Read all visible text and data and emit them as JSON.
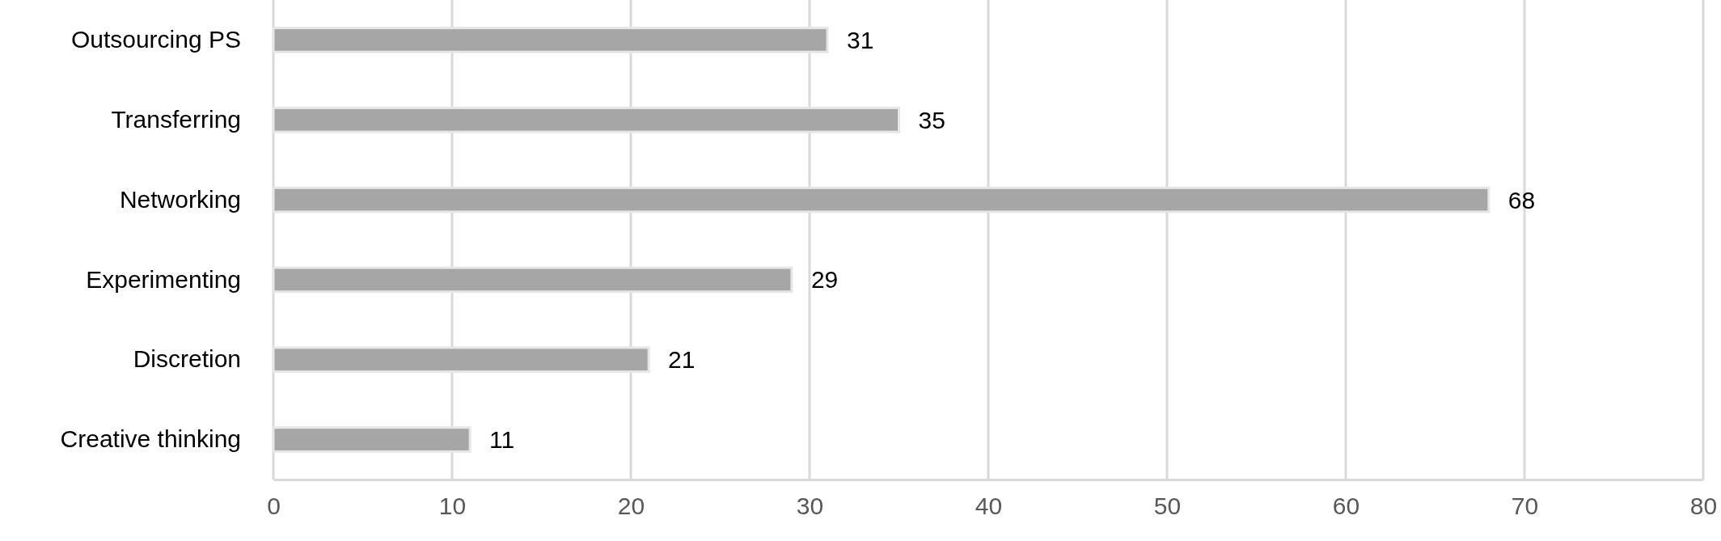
{
  "chart_data": {
    "type": "bar",
    "orientation": "horizontal",
    "categories": [
      "Outsourcing PS",
      "Transferring",
      "Networking",
      "Experimenting",
      "Discretion",
      "Creative thinking"
    ],
    "values": [
      31,
      35,
      68,
      29,
      21,
      11
    ],
    "color": "#a6a6a6",
    "xlim": [
      0,
      80
    ],
    "xticks": [
      0,
      10,
      20,
      30,
      40,
      50,
      60,
      70,
      80
    ],
    "grid": "x",
    "data_labels": true
  }
}
